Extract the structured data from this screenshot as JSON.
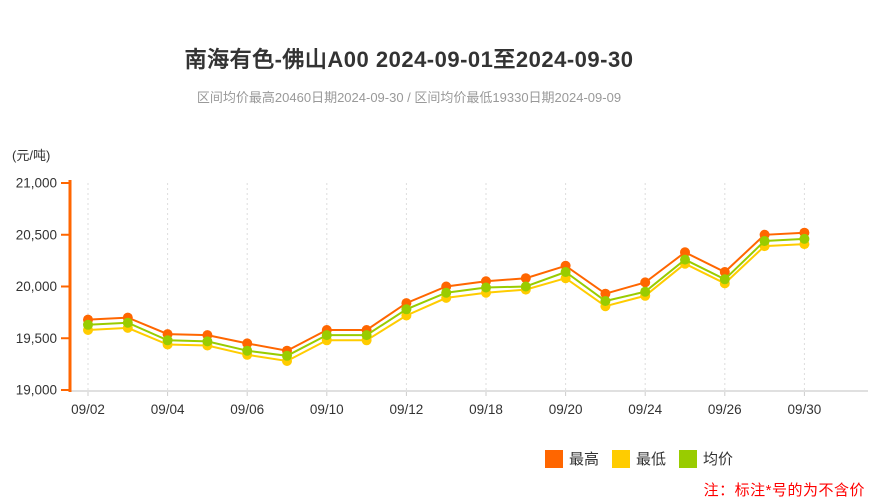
{
  "chart_data": {
    "type": "line",
    "title": "南海有色-佛山A00 2024-09-01至2024-09-30",
    "subtitle": "区间均价最高20460日期2024-09-30 / 区间均价最低19330日期2024-09-09",
    "unit_label": "(元/吨)",
    "x": [
      "09/02",
      "09/03",
      "09/04",
      "09/05",
      "09/06",
      "09/09",
      "09/10",
      "09/11",
      "09/12",
      "09/13",
      "09/18",
      "09/19",
      "09/20",
      "09/23",
      "09/24",
      "09/25",
      "09/26",
      "09/27",
      "09/30"
    ],
    "x_tick_labels": [
      "09/02",
      "09/04",
      "09/06",
      "09/10",
      "09/12",
      "09/18",
      "09/20",
      "09/24",
      "09/26",
      "09/30"
    ],
    "ylim": [
      19000,
      21000
    ],
    "y_ticks": [
      19000,
      19500,
      20000,
      20500,
      21000
    ],
    "y_tick_labels": [
      "19,000",
      "19,500",
      "20,000",
      "20,500",
      "21,000"
    ],
    "grid": true,
    "legend_position": "bottom-right",
    "axis_color": "#ff6600",
    "grid_color": "#dddddd",
    "x_axis_color": "#e0e0e0",
    "tick_color": "#cccccc",
    "label_color": "#333333",
    "series": [
      {
        "key": "high",
        "name": "最高",
        "color": "#ff6600",
        "values": [
          19680,
          19700,
          19540,
          19530,
          19450,
          19380,
          19580,
          19580,
          19840,
          20000,
          20050,
          20080,
          20200,
          19930,
          20040,
          20330,
          20140,
          20500,
          20520
        ]
      },
      {
        "key": "low",
        "name": "最低",
        "color": "#ffcc00",
        "values": [
          19580,
          19600,
          19440,
          19430,
          19340,
          19280,
          19480,
          19480,
          19720,
          19890,
          19940,
          19970,
          20080,
          19810,
          19910,
          20220,
          20030,
          20390,
          20410
        ]
      },
      {
        "key": "avg",
        "name": "均价",
        "color": "#99cc00",
        "values": [
          19630,
          19650,
          19480,
          19470,
          19380,
          19330,
          19530,
          19530,
          19780,
          19940,
          19990,
          20000,
          20140,
          19860,
          19950,
          20260,
          20070,
          20440,
          20460
        ]
      }
    ],
    "footnote": "注：标注*号的为不含价",
    "footnote_color": "#ff0000"
  }
}
